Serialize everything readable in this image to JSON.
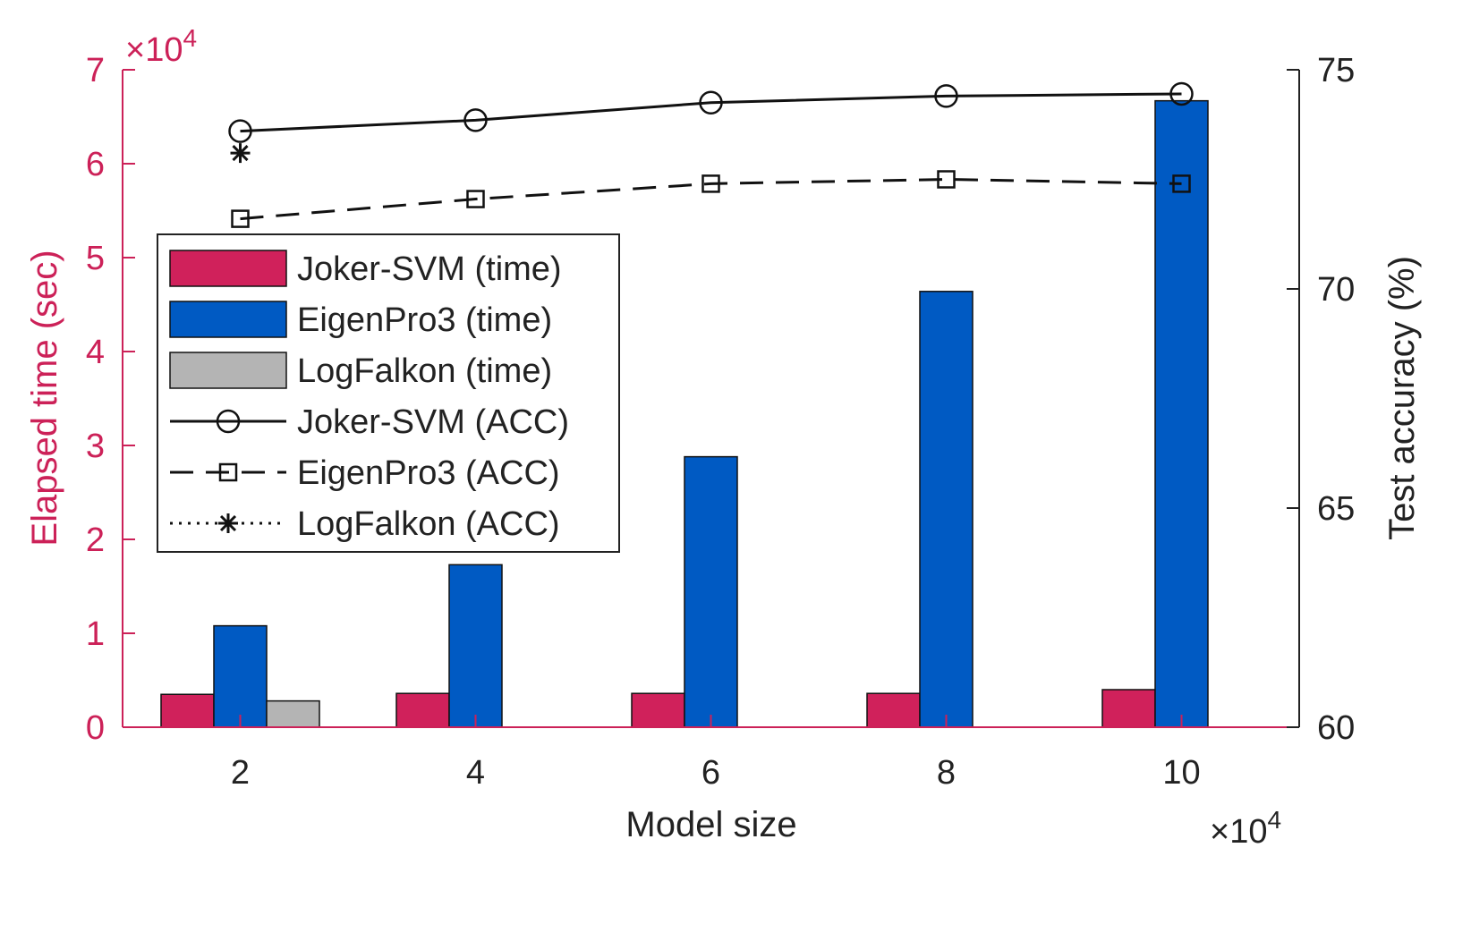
{
  "chart_data": {
    "type": "bar",
    "xlabel": "Model size",
    "ylabel_left": "Elapsed time (sec)",
    "ylabel_right": "Test accuracy (%)",
    "x_multiplier": {
      "base": "×10",
      "exp": "4"
    },
    "y_left_multiplier": {
      "base": "×10",
      "exp": "4"
    },
    "categories": [
      "2",
      "4",
      "6",
      "8",
      "10"
    ],
    "x_values": [
      2,
      4,
      6,
      8,
      10
    ],
    "xlim": [
      1,
      11
    ],
    "ylim_left": [
      0,
      7
    ],
    "ylim_right": [
      60,
      75
    ],
    "yticks_left": [
      "0",
      "1",
      "2",
      "3",
      "4",
      "5",
      "6",
      "7"
    ],
    "yticks_right": [
      "60",
      "65",
      "70",
      "75"
    ],
    "bar_series": [
      {
        "name": "Joker-SVM (time)",
        "color": "#d0215b",
        "values": [
          0.35,
          0.36,
          0.36,
          0.36,
          0.4
        ]
      },
      {
        "name": "EigenPro3 (time)",
        "color": "#005ac3",
        "values": [
          1.08,
          1.73,
          2.88,
          4.64,
          6.67
        ]
      },
      {
        "name": "LogFalkon (time)",
        "color": "#b4b4b4",
        "values": [
          0.28,
          null,
          null,
          null,
          null
        ]
      }
    ],
    "line_series": [
      {
        "name": "Joker-SVM (ACC)",
        "marker": "circle",
        "dash": "solid",
        "values": [
          73.6,
          73.85,
          74.25,
          74.4,
          74.45
        ]
      },
      {
        "name": "EigenPro3 (ACC)",
        "marker": "square",
        "dash": "dashed",
        "values": [
          71.6,
          72.05,
          72.4,
          72.5,
          72.4
        ]
      },
      {
        "name": "LogFalkon (ACC)",
        "marker": "asterisk",
        "dash": "dotted",
        "values": [
          73.1,
          null,
          null,
          null,
          null
        ]
      }
    ],
    "legend_position": "middle-left",
    "left_axis_color": "#cc2158",
    "right_axis_color": "#222222"
  }
}
